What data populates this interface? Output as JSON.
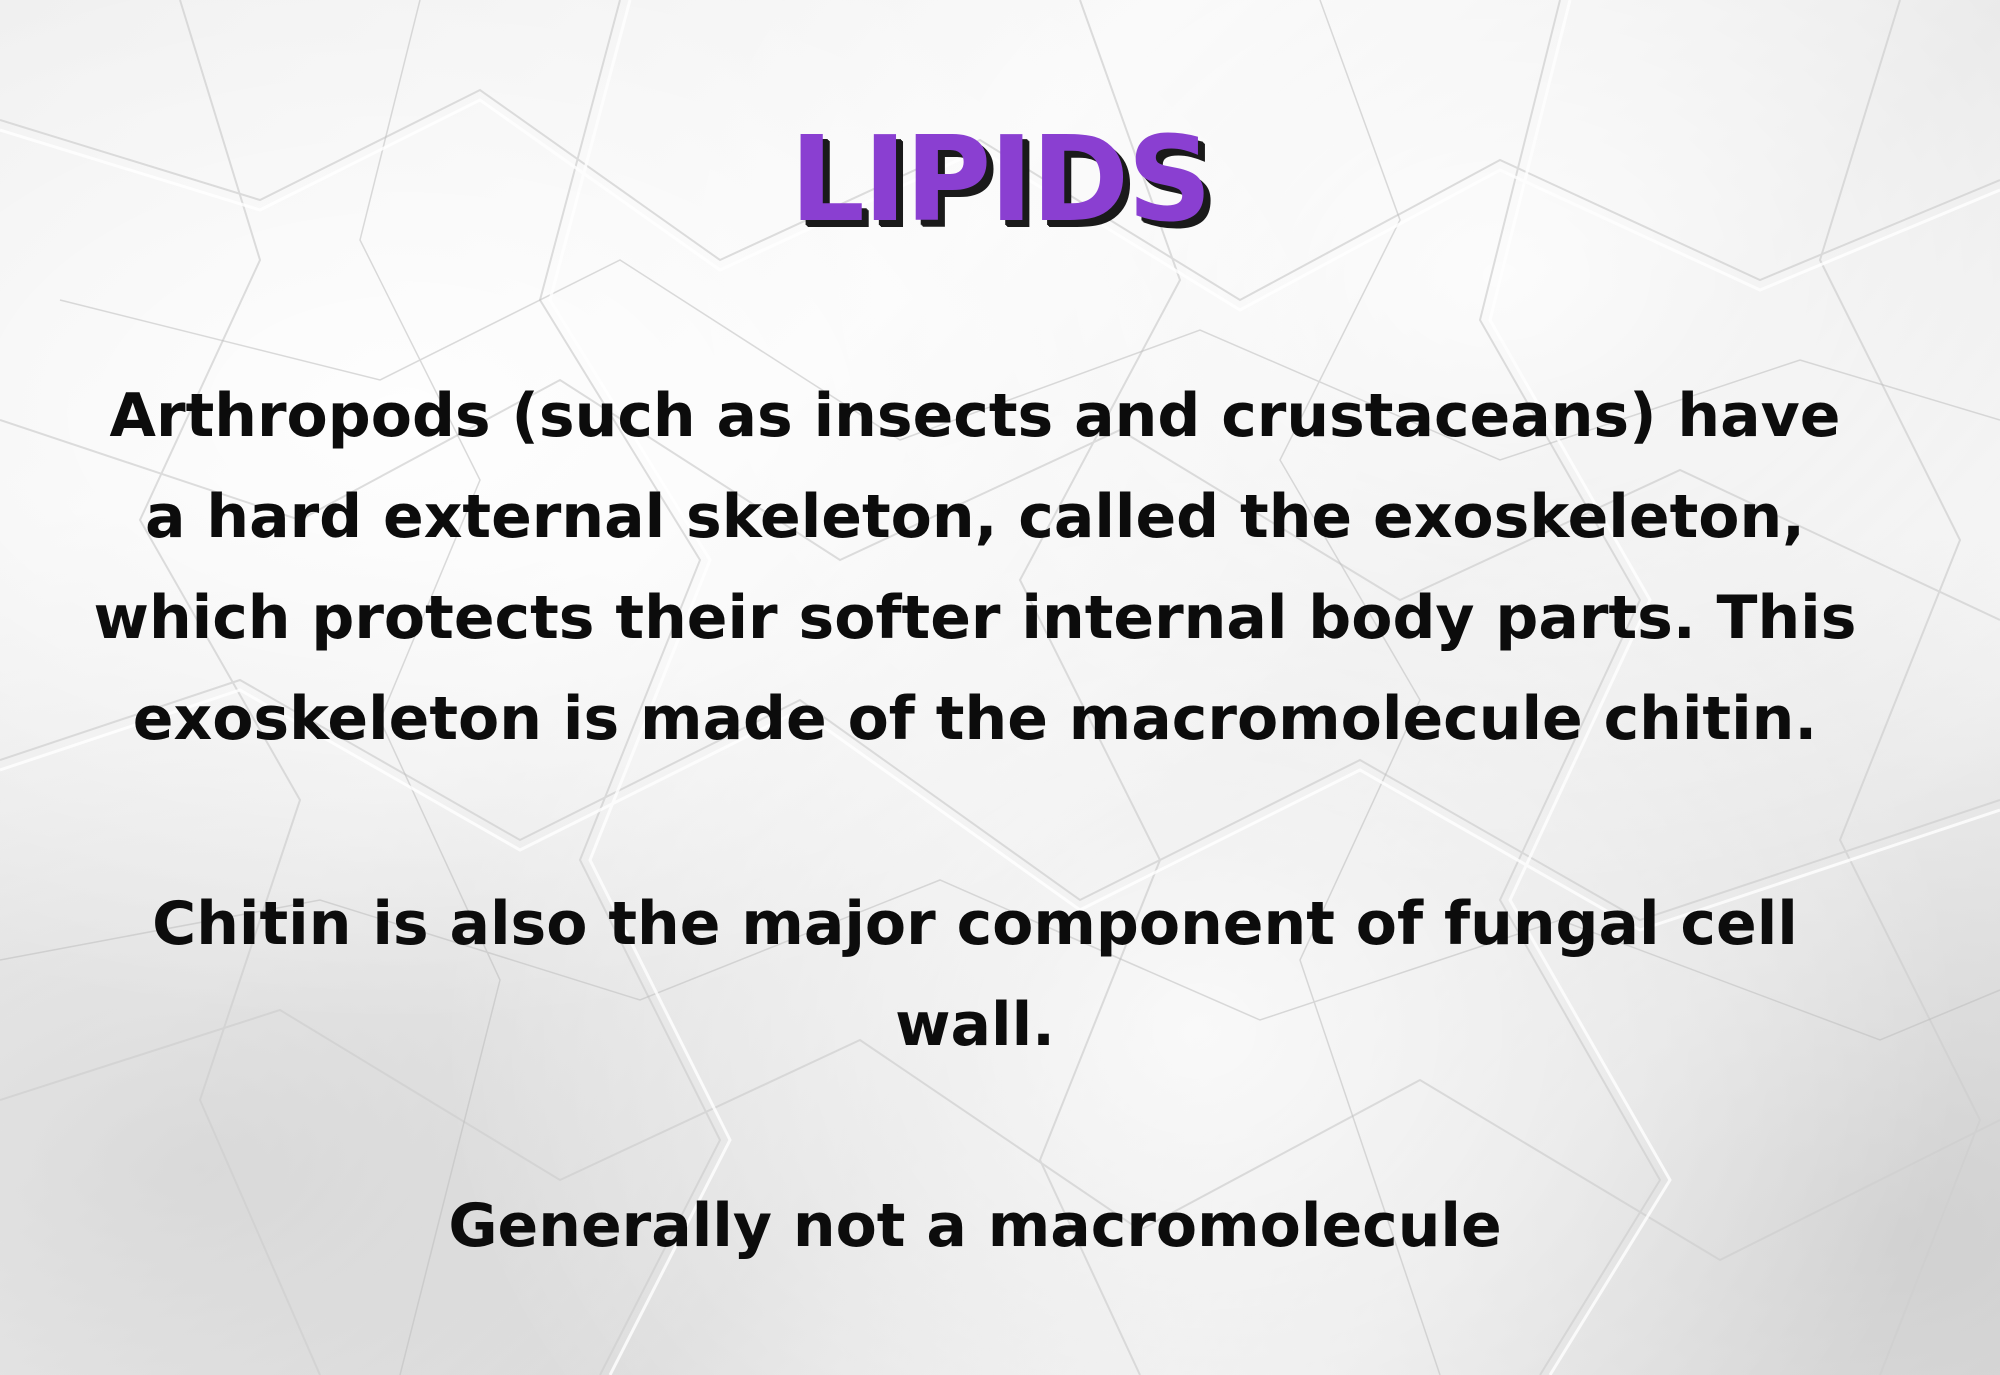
{
  "slide": {
    "title": "LIPIDS",
    "paragraph_1": "Arthropods (such as insects and crustaceans) have a hard external skeleton, called the exoskeleton, which protects their softer internal body parts. This exoskeleton is made of the macromolecule chitin.",
    "paragraph_2": "Chitin is also the major component of fungal cell wall.",
    "paragraph_3": "Generally not a macromolecule"
  },
  "colors": {
    "title_fill": "#8a3fd1",
    "title_shadow": "#1a1a1a",
    "body_text": "#0c0c0c",
    "paper_background": "#efefef"
  }
}
